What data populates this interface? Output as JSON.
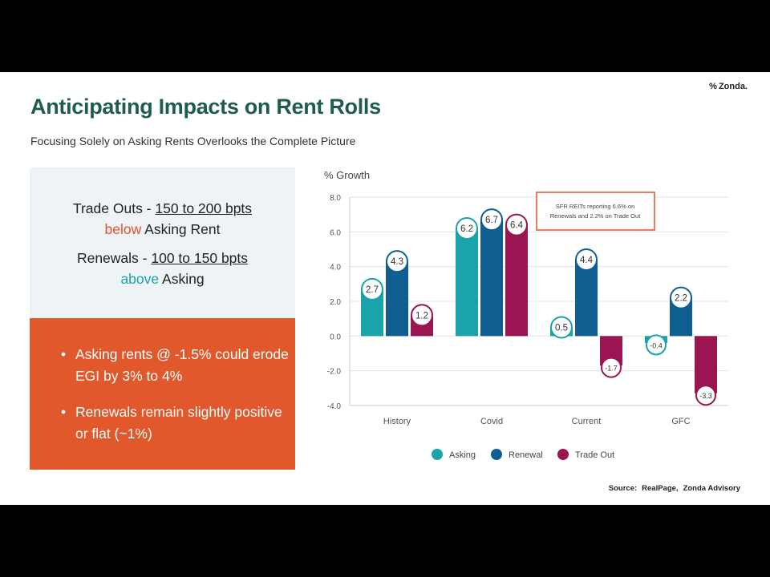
{
  "header": {
    "logo_mark": "%",
    "logo_text": "Zonda.",
    "title": "Anticipating Impacts on Rent Rolls",
    "subtitle": "Focusing Solely on Asking Rents Overlooks the Complete Picture"
  },
  "panel_top": {
    "trade_outs_label": "Trade Outs -",
    "trade_outs_range": "150 to 200 bpts",
    "trade_outs_direction": "below",
    "trade_outs_suffix": "Asking Rent",
    "renewals_label": "Renewals -",
    "renewals_range": "100 to 150 bpts",
    "renewals_direction": "above",
    "renewals_suffix": "Asking"
  },
  "panel_bottom": {
    "bullets": [
      "Asking rents @ -1.5% could erode EGI by 3% to 4%",
      "Renewals remain slightly positive or flat (~1%)"
    ]
  },
  "source": {
    "label": "Source:",
    "sources": [
      "RealPage,",
      "Zonda Advisory"
    ]
  },
  "colors": {
    "asking": "#1aa3a8",
    "renewal": "#115f92",
    "trade_out": "#9c1553",
    "title": "#1f5b4e",
    "accent_orange": "#e0582b",
    "annotation_border": "#e0532a"
  },
  "chart_data": {
    "type": "bar",
    "ylabel": "% Growth",
    "ylim": [
      -4.0,
      8.0
    ],
    "yticks": [
      "8.0",
      "6.0",
      "4.0",
      "2.0",
      "0.0",
      "-2.0",
      "-4.0"
    ],
    "ytick_values": [
      8,
      6,
      4,
      2,
      0,
      -2,
      -4
    ],
    "categories": [
      "History",
      "Covid",
      "Current",
      "GFC"
    ],
    "series": [
      {
        "name": "Asking",
        "values": [
          2.7,
          6.2,
          0.5,
          -0.4
        ],
        "labels": [
          "2.7",
          "6.2",
          "0.5",
          "-0.4"
        ]
      },
      {
        "name": "Renewal",
        "values": [
          4.3,
          6.7,
          4.4,
          2.2
        ],
        "labels": [
          "4.3",
          "6.7",
          "4.4",
          "2.2"
        ]
      },
      {
        "name": "Trade Out",
        "values": [
          1.2,
          6.4,
          -1.7,
          -3.3
        ],
        "labels": [
          "1.2",
          "6.4",
          "-1.7",
          "-3.3"
        ]
      }
    ],
    "annotation": {
      "line1": "SFR REITs reporting 6.6% on",
      "line2": "Renewals and 2.2% on Trade Out"
    },
    "legend_position": "bottom"
  }
}
